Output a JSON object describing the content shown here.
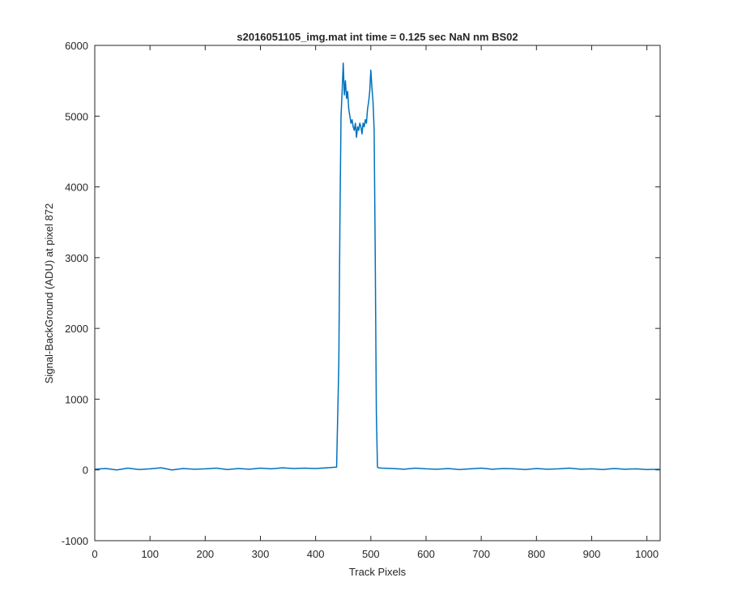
{
  "chart_data": {
    "type": "line",
    "title": "s2016051105_img.mat int time = 0.125 sec  NaN nm BS02",
    "xlabel": "Track Pixels",
    "ylabel": "Signal-BackGround (ADU) at pixel 872",
    "xlim": [
      0,
      1024
    ],
    "ylim": [
      -1000,
      6000
    ],
    "xticks": [
      0,
      100,
      200,
      300,
      400,
      500,
      600,
      700,
      800,
      900,
      1000
    ],
    "yticks": [
      -1000,
      0,
      1000,
      2000,
      3000,
      4000,
      5000,
      6000
    ],
    "grid": false,
    "line_color": "#0072BD",
    "series": [
      {
        "x": [
          0,
          20,
          40,
          60,
          80,
          100,
          120,
          140,
          160,
          180,
          200,
          220,
          240,
          260,
          280,
          300,
          320,
          340,
          360,
          380,
          400,
          420,
          438,
          442,
          444,
          446,
          448,
          450,
          452,
          454,
          456,
          458,
          460,
          462,
          464,
          466,
          468,
          470,
          472,
          474,
          476,
          478,
          480,
          482,
          484,
          486,
          488,
          490,
          492,
          494,
          496,
          498,
          500,
          502,
          504,
          506,
          508,
          510,
          512,
          514,
          520,
          540,
          560,
          580,
          600,
          620,
          640,
          660,
          680,
          700,
          720,
          740,
          760,
          780,
          800,
          820,
          840,
          860,
          880,
          900,
          920,
          940,
          960,
          980,
          1000,
          1023
        ],
        "y": [
          10,
          20,
          0,
          25,
          5,
          15,
          30,
          0,
          20,
          10,
          15,
          25,
          5,
          20,
          10,
          25,
          15,
          30,
          20,
          25,
          20,
          30,
          40,
          1500,
          3500,
          5000,
          5350,
          5750,
          5300,
          5500,
          5250,
          5350,
          5100,
          5000,
          4900,
          4950,
          4850,
          4800,
          4900,
          4700,
          4850,
          4800,
          4900,
          4850,
          4750,
          4900,
          4850,
          4950,
          4900,
          5100,
          5200,
          5350,
          5650,
          5400,
          5200,
          4800,
          3000,
          800,
          40,
          30,
          25,
          20,
          10,
          25,
          15,
          10,
          20,
          5,
          15,
          25,
          10,
          20,
          15,
          5,
          20,
          10,
          15,
          25,
          10,
          15,
          5,
          20,
          10,
          15,
          5,
          10
        ]
      }
    ]
  }
}
